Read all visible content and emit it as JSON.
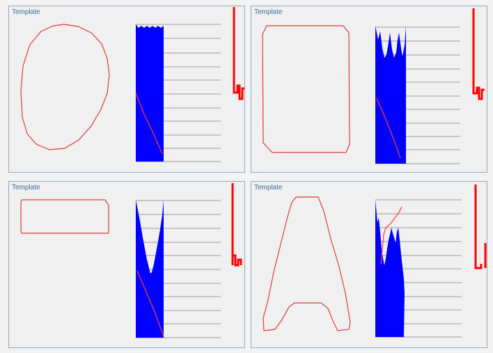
{
  "panels": [
    {
      "title": "Template",
      "shape": "ellipse"
    },
    {
      "title": "Template",
      "shape": "rounded-square"
    },
    {
      "title": "Template",
      "shape": "flat-rectangle"
    },
    {
      "title": "Template",
      "shape": "letter-a"
    }
  ],
  "colors": {
    "panel_background": "#f0f0f0",
    "panel_border": "#8ea7bf",
    "title_text": "#3f6a96",
    "template_outline": "#e23a3a",
    "histogram_fill": "#0000ff",
    "grid_line": "#9a9a9a",
    "side_indicator": "#ff0000"
  }
}
